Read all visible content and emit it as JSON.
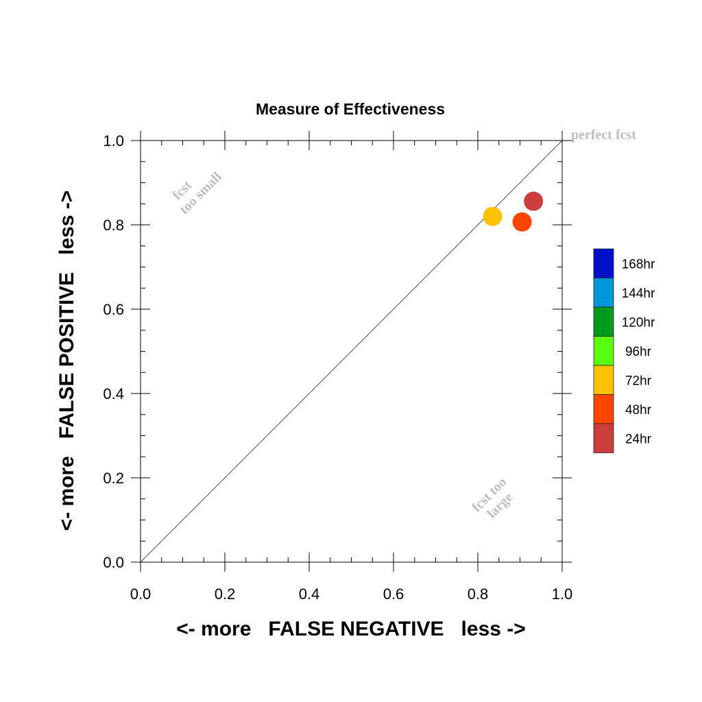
{
  "chart_data": {
    "type": "scatter",
    "title": "Measure of Effectiveness",
    "xlabel": "<- more   FALSE NEGATIVE   less ->",
    "ylabel": "<- more   FALSE POSITIVE   less ->",
    "xlim": [
      0.0,
      1.0
    ],
    "ylim": [
      0.0,
      1.0
    ],
    "x_ticks": [
      "0.0",
      "0.2",
      "0.4",
      "0.6",
      "0.8",
      "1.0"
    ],
    "y_ticks": [
      "0.0",
      "0.2",
      "0.4",
      "0.6",
      "0.8",
      "1.0"
    ],
    "grid": false,
    "diagonal_line": true,
    "series": [
      {
        "name": "72hr",
        "color": "#FFC200",
        "x": 0.835,
        "y": 0.82
      },
      {
        "name": "48hr",
        "color": "#FF4400",
        "x": 0.905,
        "y": 0.807
      },
      {
        "name": "24hr",
        "color": "#CC3D3D",
        "x": 0.932,
        "y": 0.856
      }
    ],
    "legend": {
      "placement": "right",
      "entries": [
        {
          "label": "168hr",
          "color": "#0010C8"
        },
        {
          "label": "144hr",
          "color": "#0098DB"
        },
        {
          "label": "120hr",
          "color": "#009A1E"
        },
        {
          "label": "96hr",
          "color": "#5AFF10"
        },
        {
          "label": "72hr",
          "color": "#FFC200"
        },
        {
          "label": "48hr",
          "color": "#FF4400"
        },
        {
          "label": "24hr",
          "color": "#CC3D3D"
        }
      ]
    },
    "annotations": {
      "perfect": "perfect fcst",
      "too_small_line1": "fcst",
      "too_small_line2": "too small",
      "too_large_line1": "fcst too",
      "too_large_line2": "large"
    }
  }
}
